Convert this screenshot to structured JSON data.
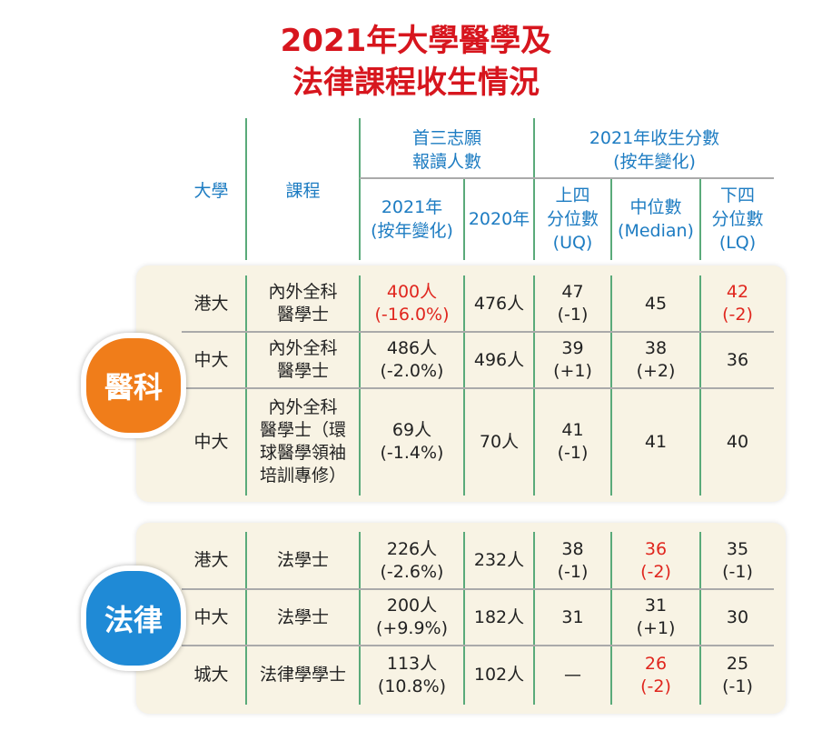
{
  "title": [
    "2021年大學醫學及",
    "法律課程收生情況"
  ],
  "header": {
    "university": "大學",
    "course": "課程",
    "applicants": [
      "首三志願",
      "報讀人數"
    ],
    "scores": [
      "2021年收生分數",
      "(按年變化)"
    ],
    "applicants_2021": [
      "2021年",
      "(按年變化)"
    ],
    "applicants_2020": [
      "2020年"
    ],
    "uq": [
      "上四",
      "分位數",
      "(UQ)"
    ],
    "median": [
      "中位數",
      "(Median)"
    ],
    "lq": [
      "下四",
      "分位數",
      "(LQ)"
    ]
  },
  "sections": [
    {
      "name": "醫科",
      "color": "#f07d1a",
      "rows": [
        [
          {
            "lines": [
              "港大"
            ]
          },
          {
            "lines": [
              "內外全科",
              "醫學士"
            ]
          },
          {
            "lines": [
              "400人",
              "(-16.0%)"
            ],
            "color": "#e0261e"
          },
          {
            "lines": [
              "476人"
            ]
          },
          {
            "lines": [
              "47",
              "(-1)"
            ]
          },
          {
            "lines": [
              "45"
            ]
          },
          {
            "lines": [
              "42",
              "(-2)"
            ],
            "color": "#e0261e"
          }
        ],
        [
          {
            "lines": [
              "中大"
            ]
          },
          {
            "lines": [
              "內外全科",
              "醫學士"
            ]
          },
          {
            "lines": [
              "486人",
              "(-2.0%)"
            ]
          },
          {
            "lines": [
              "496人"
            ]
          },
          {
            "lines": [
              "39",
              "(+1)"
            ]
          },
          {
            "lines": [
              "38",
              "(+2)"
            ]
          },
          {
            "lines": [
              "36"
            ]
          }
        ],
        [
          {
            "lines": [
              "中大"
            ]
          },
          {
            "lines": [
              "內外全科",
              "醫學士（環",
              "球醫學領袖",
              "培訓專修）"
            ]
          },
          {
            "lines": [
              "69人",
              "(-1.4%)"
            ]
          },
          {
            "lines": [
              "70人"
            ]
          },
          {
            "lines": [
              "41",
              "(-1)"
            ]
          },
          {
            "lines": [
              "41"
            ]
          },
          {
            "lines": [
              "40"
            ]
          }
        ]
      ]
    },
    {
      "name": "法律",
      "color": "#1f8ad6",
      "rows": [
        [
          {
            "lines": [
              "港大"
            ]
          },
          {
            "lines": [
              "法學士"
            ]
          },
          {
            "lines": [
              "226人",
              "(-2.6%)"
            ]
          },
          {
            "lines": [
              "232人"
            ]
          },
          {
            "lines": [
              "38",
              "(-1)"
            ]
          },
          {
            "lines": [
              "36",
              "(-2)"
            ],
            "color": "#e0261e"
          },
          {
            "lines": [
              "35",
              "(-1)"
            ]
          }
        ],
        [
          {
            "lines": [
              "中大"
            ]
          },
          {
            "lines": [
              "法學士"
            ]
          },
          {
            "lines": [
              "200人",
              "(+9.9%)"
            ]
          },
          {
            "lines": [
              "182人"
            ]
          },
          {
            "lines": [
              "31"
            ]
          },
          {
            "lines": [
              "31",
              "(+1)"
            ]
          },
          {
            "lines": [
              "30"
            ]
          }
        ],
        [
          {
            "lines": [
              "城大"
            ]
          },
          {
            "lines": [
              "法律學學士"
            ]
          },
          {
            "lines": [
              "113人",
              "(10.8%)"
            ]
          },
          {
            "lines": [
              "102人"
            ]
          },
          {
            "lines": [
              "—"
            ]
          },
          {
            "lines": [
              "26",
              "(-2)"
            ],
            "color": "#e0261e"
          },
          {
            "lines": [
              "25",
              "(-1)"
            ]
          }
        ]
      ]
    }
  ]
}
